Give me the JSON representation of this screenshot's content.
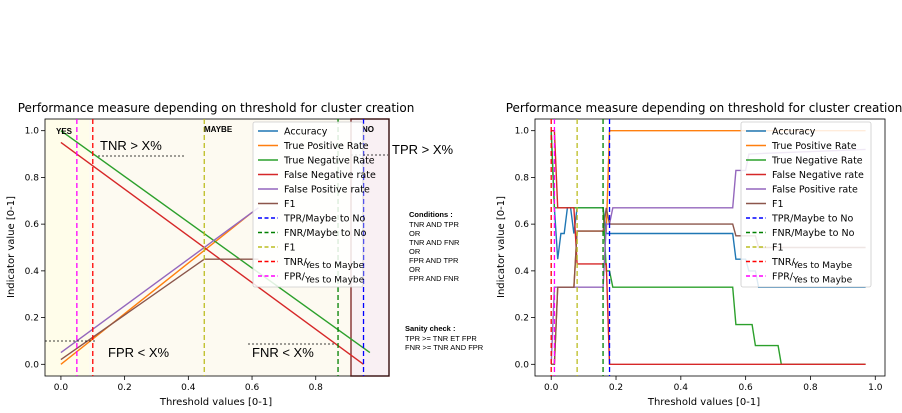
{
  "chart_data": [
    {
      "type": "line",
      "title": "Performance measure depending on threshold for cluster creation",
      "xlabel": "Threshold values [0-1]",
      "ylabel": "Indicator value [0-1]",
      "xlim": [
        -0.05,
        1.03
      ],
      "ylim": [
        -0.05,
        1.05
      ],
      "xticks": [
        "0.0",
        "0.2",
        "0.4",
        "0.6",
        "0.8"
      ],
      "yticks": [
        "0.0",
        "0.2",
        "0.4",
        "0.6",
        "0.8",
        "1.0"
      ],
      "grid": false,
      "legend_position": "upper right",
      "series": [
        {
          "name": "Accuracy",
          "style": "solid",
          "color": "#1f77b4",
          "x": [],
          "y": []
        },
        {
          "name": "True Positive Rate",
          "style": "solid",
          "color": "#ff7f0e",
          "x": [
            0,
            0.6
          ],
          "y": [
            0,
            0.65
          ]
        },
        {
          "name": "True Negative Rate",
          "style": "solid",
          "color": "#2ca02c",
          "x": [
            0,
            0.97
          ],
          "y": [
            1.0,
            0.05
          ]
        },
        {
          "name": "False Negative rate",
          "style": "solid",
          "color": "#d62728",
          "x": [
            0,
            0.95
          ],
          "y": [
            0.95,
            0.0
          ]
        },
        {
          "name": "False Positive rate",
          "style": "solid",
          "color": "#9467bd",
          "x": [
            0,
            0.62
          ],
          "y": [
            0.05,
            0.67
          ]
        },
        {
          "name": "F1",
          "style": "solid",
          "color": "#8c564b",
          "x": [
            0,
            0.45,
            0.62
          ],
          "y": [
            0.02,
            0.45,
            0.45
          ]
        },
        {
          "name": "TPR/Maybe to No",
          "style": "dashed",
          "color": "#0000ff",
          "vline": 0.95
        },
        {
          "name": "FNR/Maybe to No",
          "style": "dashed",
          "color": "#008000",
          "vline": 0.87
        },
        {
          "name": "F1",
          "style": "dashed",
          "color": "#bcbd22",
          "vline": 0.45
        },
        {
          "name": "TNR/",
          "style": "dashed",
          "color": "#ff0000",
          "vline": 0.1
        },
        {
          "name": "FPR/",
          "style": "dashed",
          "color": "#ff00ff",
          "vline": 0.05
        }
      ],
      "annotations": {
        "yes": "YES",
        "maybe": "MAYBE",
        "no": "NO",
        "tnr": "TNR > X%",
        "tpr": "TPR > X%",
        "fpr": "FPR < X%",
        "fnr": "FNR < X%",
        "tnr_legend_suffix": "Yes to Maybe",
        "fpr_legend_suffix": "Yes to Maybe",
        "conditions_title": "Conditions :",
        "conditions": [
          "TNR AND TPR",
          "OR",
          "TNR AND FNR",
          "OR",
          "FPR AND TPR",
          "OR",
          "FPR AND FNR"
        ],
        "sanity_title": "Sanity check :",
        "sanity": [
          "TPR >= TNR ET FPR",
          "FNR >= TNR AND FPR"
        ]
      }
    },
    {
      "type": "line",
      "title": "Performance measure depending on threshold for cluster creation",
      "xlabel": "Threshold values [0-1]",
      "ylabel": "Indicator value [0-1]",
      "xlim": [
        -0.05,
        1.03
      ],
      "ylim": [
        -0.05,
        1.05
      ],
      "xticks": [
        "0.0",
        "0.2",
        "0.4",
        "0.6",
        "0.8",
        "1.0"
      ],
      "yticks": [
        "0.0",
        "0.2",
        "0.4",
        "0.6",
        "0.8",
        "1.0"
      ],
      "grid": false,
      "legend_position": "upper right",
      "series": [
        {
          "name": "Accuracy",
          "style": "solid",
          "color": "#1f77b4",
          "x": [
            0,
            0.01,
            0.02,
            0.03,
            0.04,
            0.05,
            0.06,
            0.07,
            0.08,
            0.16,
            0.17,
            0.18,
            0.56,
            0.57,
            0.6,
            0.61,
            0.63,
            0.64,
            0.66,
            0.97
          ],
          "y": [
            1.0,
            0.67,
            0.45,
            0.56,
            0.56,
            0.67,
            0.67,
            0.56,
            0.67,
            0.67,
            0.56,
            0.56,
            0.56,
            0.45,
            0.45,
            0.4,
            0.4,
            0.33,
            0.33,
            0.33
          ]
        },
        {
          "name": "True Positive Rate",
          "style": "solid",
          "color": "#ff7f0e",
          "x": [
            0,
            0.01,
            0.02,
            0.07,
            0.08,
            0.16,
            0.17,
            0.18,
            0.97
          ],
          "y": [
            0.0,
            0.0,
            0.33,
            0.33,
            0.57,
            0.57,
            0.57,
            1.0,
            1.0
          ]
        },
        {
          "name": "True Negative Rate",
          "style": "solid",
          "color": "#2ca02c",
          "x": [
            0,
            0.01,
            0.02,
            0.03,
            0.16,
            0.17,
            0.18,
            0.19,
            0.56,
            0.57,
            0.62,
            0.63,
            0.66,
            0.67,
            0.7,
            0.71,
            0.97
          ],
          "y": [
            1.0,
            0.67,
            0.67,
            0.67,
            0.67,
            0.4,
            0.4,
            0.33,
            0.33,
            0.17,
            0.17,
            0.08,
            0.08,
            0.08,
            0.08,
            0.0,
            0.0
          ]
        },
        {
          "name": "False Negative rate",
          "style": "solid",
          "color": "#d62728",
          "x": [
            0,
            0.01,
            0.02,
            0.07,
            0.08,
            0.16,
            0.17,
            0.18,
            0.97
          ],
          "y": [
            1.0,
            1.0,
            0.67,
            0.67,
            0.43,
            0.43,
            0.43,
            0.0,
            0.0
          ]
        },
        {
          "name": "False Positive rate",
          "style": "solid",
          "color": "#9467bd",
          "x": [
            0,
            0.01,
            0.02,
            0.16,
            0.17,
            0.18,
            0.19,
            0.56,
            0.57,
            0.6,
            0.61,
            0.97
          ],
          "y": [
            0.0,
            0.33,
            0.33,
            0.33,
            0.6,
            0.6,
            0.67,
            0.67,
            0.83,
            0.83,
            0.9,
            0.92
          ]
        },
        {
          "name": "F1",
          "style": "solid",
          "color": "#8c564b",
          "x": [
            0,
            0.01,
            0.02,
            0.07,
            0.08,
            0.16,
            0.17,
            0.18,
            0.56,
            0.57,
            0.63,
            0.64,
            0.97
          ],
          "y": [
            0.0,
            0.0,
            0.33,
            0.33,
            0.57,
            0.57,
            0.67,
            0.6,
            0.6,
            0.55,
            0.55,
            0.5,
            0.5
          ]
        },
        {
          "name": "TPR/Maybe to No",
          "style": "dashed",
          "color": "#0000ff",
          "vline": 0.18
        },
        {
          "name": "FNR/Maybe to No",
          "style": "dashed",
          "color": "#008000",
          "vline": 0.16
        },
        {
          "name": "F1",
          "style": "dashed",
          "color": "#bcbd22",
          "vline": 0.08
        },
        {
          "name": "TNR/",
          "style": "dashed",
          "color": "#ff0000",
          "vline": 0.0
        },
        {
          "name": "FPR/",
          "style": "dashed",
          "color": "#ff00ff",
          "vline": 0.01
        }
      ],
      "annotations": {
        "tnr_legend_suffix": "Yes to Maybe",
        "fpr_legend_suffix": "Yes to Maybe"
      }
    }
  ]
}
